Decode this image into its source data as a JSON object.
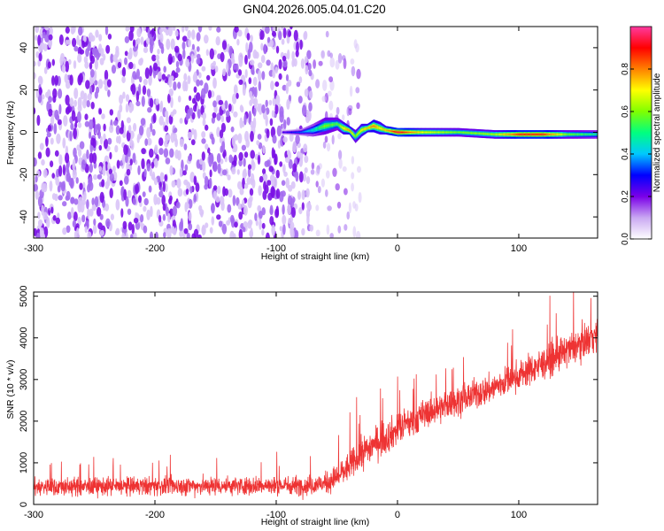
{
  "title": "GN04.2026.005.04.01.C20",
  "chart_data": [
    {
      "type": "heatmap",
      "xlabel": "Height of straight line (km)",
      "ylabel": "Frequency (Hz)",
      "xlim": [
        -300,
        165
      ],
      "ylim": [
        -50,
        50
      ],
      "x_ticks": [
        -300,
        -200,
        -100,
        0,
        100
      ],
      "y_ticks": [
        -40,
        -20,
        0,
        20,
        40
      ],
      "colorbar": {
        "label": "Normalized spectral amplitude",
        "range": [
          0,
          1
        ],
        "ticks": [
          0.0,
          0.2,
          0.4,
          0.6,
          0.8
        ],
        "colormap": [
          "#ffffff",
          "#c9a8f2",
          "#7a00e8",
          "#0000ff",
          "#00c8ff",
          "#00ff80",
          "#80ff00",
          "#ffff00",
          "#ff8000",
          "#ff0000",
          "#ff3aa0"
        ]
      },
      "regions": [
        {
          "desc": "scattered speckle",
          "x": [
            -300,
            -70
          ],
          "f": [
            -50,
            50
          ],
          "amplitude": 0.15
        },
        {
          "desc": "sparse speckle",
          "x": [
            -70,
            -30
          ],
          "f": [
            -50,
            50
          ],
          "amplitude": 0.05
        }
      ],
      "ridge": {
        "x": [
          -95,
          -80,
          -70,
          -60,
          -50,
          -45,
          -40,
          -35,
          -30,
          -25,
          -20,
          -15,
          -10,
          0,
          20,
          50,
          80,
          100,
          120,
          140,
          165
        ],
        "f": [
          0,
          0,
          1,
          3,
          4,
          2,
          1,
          -2,
          1,
          2,
          3,
          2,
          1,
          0,
          0,
          0,
          -1,
          -1,
          -1,
          -1,
          -1
        ],
        "width": [
          1,
          1.5,
          3,
          4,
          3,
          3,
          2,
          3,
          3,
          2,
          3,
          3,
          2,
          2,
          2,
          2,
          2,
          2,
          2,
          2,
          2
        ],
        "amp": [
          0.25,
          0.35,
          0.45,
          0.6,
          0.55,
          0.7,
          0.8,
          0.6,
          0.7,
          0.75,
          0.8,
          0.7,
          0.75,
          0.95,
          0.7,
          0.6,
          0.65,
          0.9,
          0.9,
          0.6,
          0.5
        ]
      }
    },
    {
      "type": "line",
      "xlabel": "Height of straight line (km)",
      "ylabel": "SNR (10 * v/v)",
      "xlim": [
        -300,
        165
      ],
      "ylim": [
        0,
        5100
      ],
      "x_ticks": [
        -300,
        -200,
        -100,
        0,
        100
      ],
      "y_ticks": [
        0,
        1000,
        2000,
        3000,
        4000,
        5000
      ],
      "color": "#ee3333",
      "series": [
        {
          "x": [
            -300,
            -250,
            -200,
            -150,
            -100,
            -75,
            -60,
            -50,
            -40,
            -30,
            -20,
            -10,
            0,
            25,
            50,
            75,
            100,
            125,
            150,
            165
          ],
          "y": [
            420,
            430,
            440,
            450,
            450,
            460,
            500,
            650,
            900,
            1200,
            1450,
            1600,
            1800,
            2200,
            2500,
            2750,
            3100,
            3450,
            3850,
            4100
          ],
          "noise": [
            280,
            280,
            280,
            280,
            280,
            300,
            320,
            400,
            450,
            500,
            500,
            500,
            500,
            450,
            450,
            450,
            450,
            500,
            500,
            500
          ]
        }
      ]
    }
  ]
}
